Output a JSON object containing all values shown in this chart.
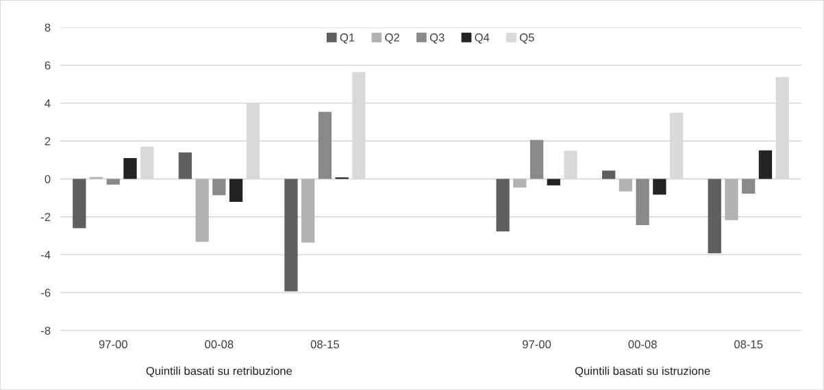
{
  "chart_data": {
    "type": "bar",
    "categories": [
      "97-00",
      "00-08",
      "08-15",
      null,
      "97-00",
      "00-08",
      "08-15"
    ],
    "series": [
      {
        "name": "Q1",
        "color": "#5f5f5f",
        "values": [
          -2.6,
          1.4,
          -5.93,
          null,
          -2.77,
          0.44,
          -3.93
        ]
      },
      {
        "name": "Q2",
        "color": "#b2b2b2",
        "values": [
          0.1,
          -3.32,
          -3.36,
          null,
          -0.46,
          -0.66,
          -2.18
        ]
      },
      {
        "name": "Q3",
        "color": "#898989",
        "values": [
          -0.3,
          -0.86,
          3.54,
          null,
          2.06,
          -2.44,
          -0.78
        ]
      },
      {
        "name": "Q4",
        "color": "#232323",
        "values": [
          1.1,
          -1.21,
          0.08,
          null,
          -0.34,
          -0.83,
          1.51
        ]
      },
      {
        "name": "Q5",
        "color": "#d9d9d9",
        "values": [
          1.7,
          3.98,
          5.64,
          null,
          1.49,
          3.49,
          5.38
        ]
      }
    ],
    "ylim": [
      -8,
      8
    ],
    "yticks": [
      -8,
      -6,
      -4,
      -2,
      0,
      2,
      4,
      6,
      8
    ],
    "grid": "y",
    "legend": "top",
    "annotations": [
      "Quintili basati su retribuzione",
      "Quintili basati su istruzione"
    ]
  }
}
